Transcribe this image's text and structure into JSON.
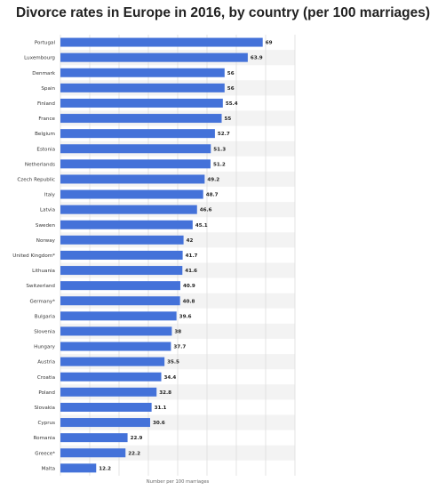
{
  "chart_data": {
    "type": "bar",
    "orientation": "horizontal",
    "title": "Divorce rates in Europe in 2016, by country (per 100 marriages)",
    "xlabel": "Number per 100 marriages",
    "ylabel": "",
    "xlim": [
      0,
      80
    ],
    "grid": true,
    "legend": "none",
    "bar_color": "#4472d9",
    "categories": [
      "Portugal",
      "Luxembourg",
      "Denmark",
      "Spain",
      "Finland",
      "France",
      "Belgium",
      "Estonia",
      "Netherlands",
      "Czech Republic",
      "Italy",
      "Latvia",
      "Sweden",
      "Norway",
      "United Kingdom*",
      "Lithuania",
      "Switzerland",
      "Germany*",
      "Bulgaria",
      "Slovenia",
      "Hungary",
      "Austria",
      "Croatia",
      "Poland",
      "Slovakia",
      "Cyprus",
      "Romania",
      "Greece*",
      "Malta"
    ],
    "values": [
      69,
      63.9,
      56,
      56,
      55.4,
      55,
      52.7,
      51.3,
      51.2,
      49.2,
      48.7,
      46.6,
      45.1,
      42,
      41.7,
      41.6,
      40.9,
      40.8,
      39.6,
      38,
      37.7,
      35.5,
      34.4,
      32.8,
      31.1,
      30.6,
      22.9,
      22.2,
      12.2
    ],
    "value_labels": [
      "69",
      "63.9",
      "56",
      "56",
      "55.4",
      "55",
      "52.7",
      "51.3",
      "51.2",
      "49.2",
      "48.7",
      "46.6",
      "45.1",
      "42",
      "41.7",
      "41.6",
      "40.9",
      "40.8",
      "39.6",
      "38",
      "37.7",
      "35.5",
      "34.4",
      "32.8",
      "31.1",
      "30.6",
      "22.9",
      "22.2",
      "12.2"
    ]
  }
}
